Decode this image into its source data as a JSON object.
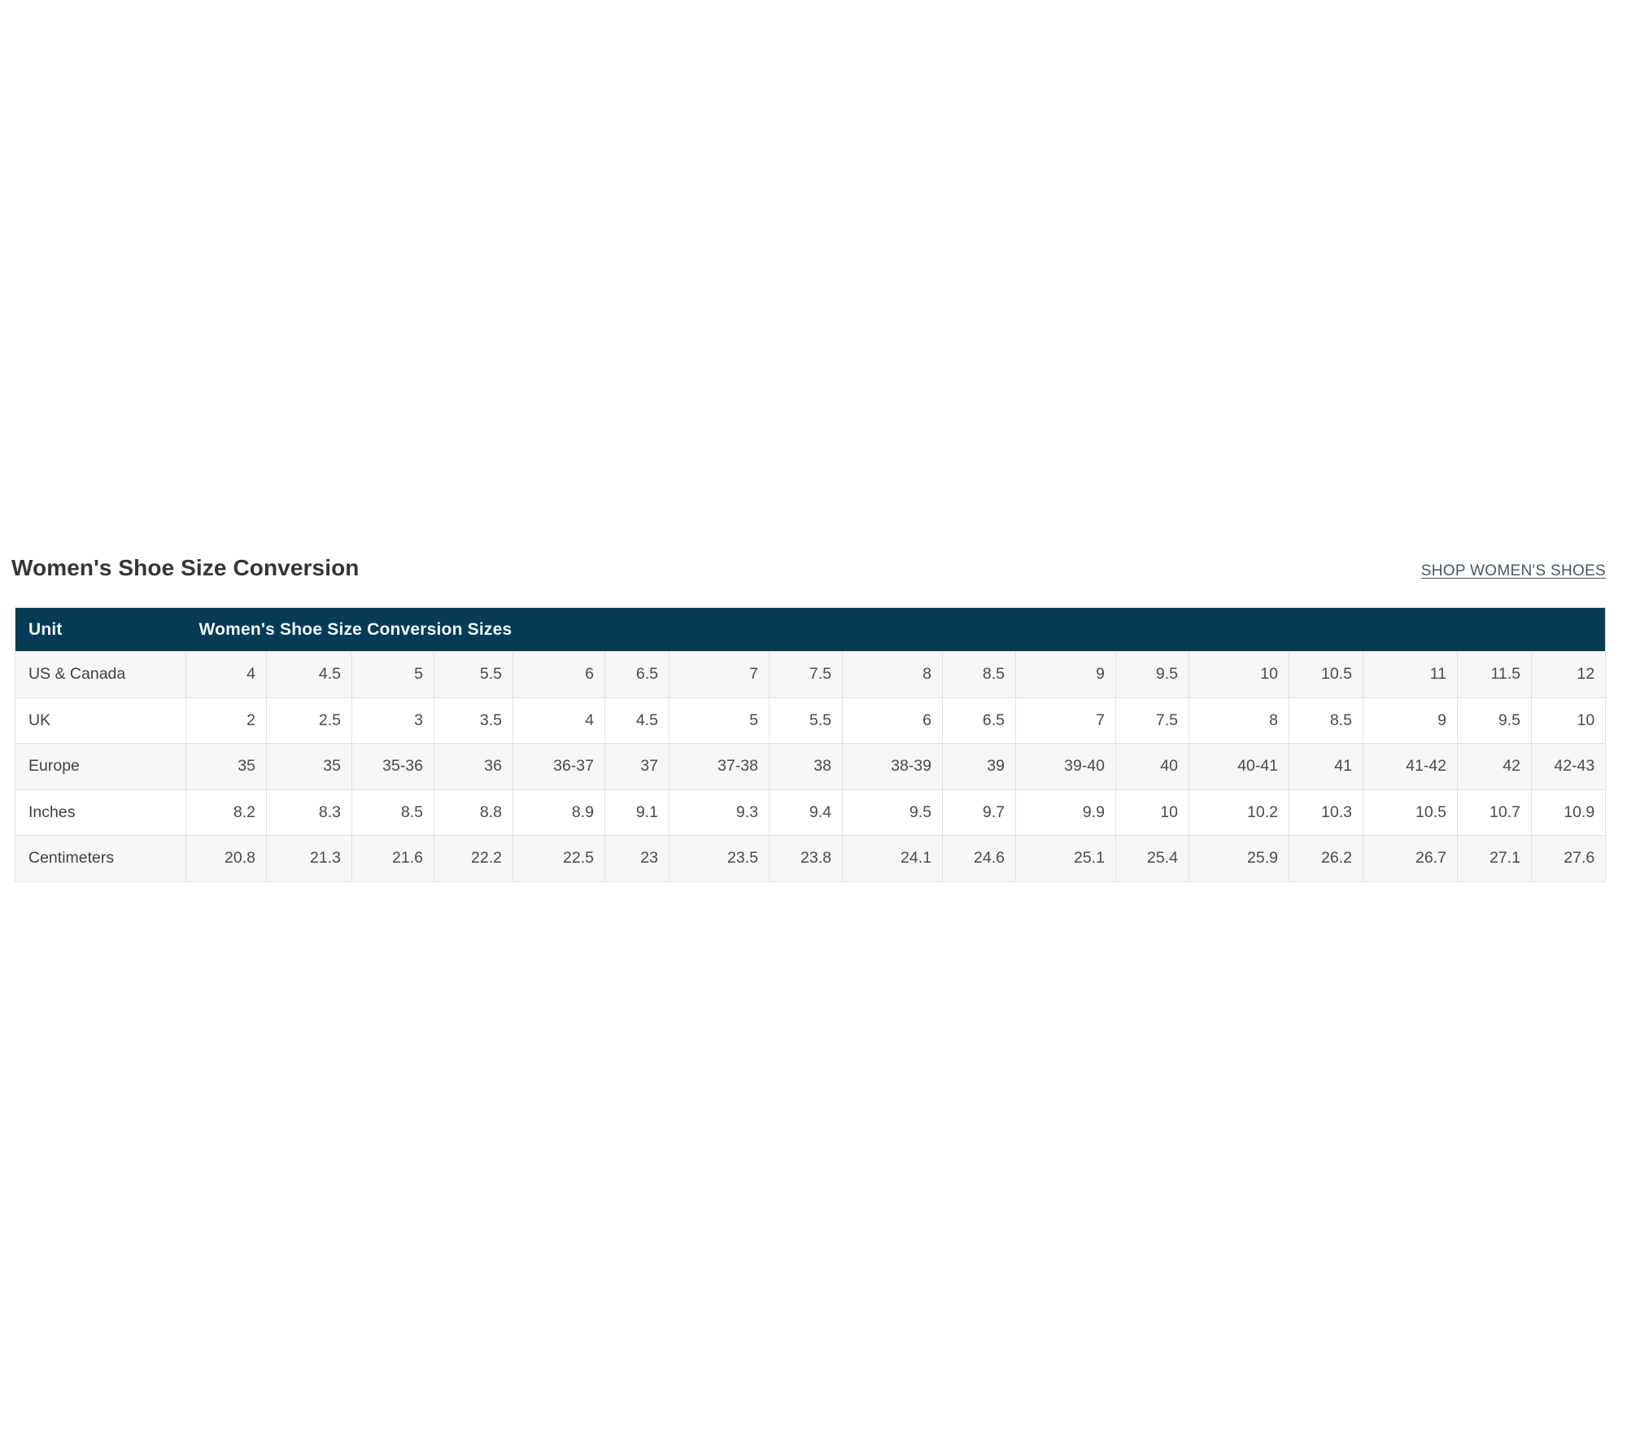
{
  "page": {
    "title": "Women's Shoe Size Conversion",
    "shop_link_label": "SHOP WOMEN'S SHOES"
  },
  "table": {
    "header": {
      "unit_label": "Unit",
      "sizes_label": "Women's Shoe Size Conversion Sizes"
    },
    "rows": [
      {
        "label": "US & Canada",
        "values": [
          "4",
          "4.5",
          "5",
          "5.5",
          "6",
          "6.5",
          "7",
          "7.5",
          "8",
          "8.5",
          "9",
          "9.5",
          "10",
          "10.5",
          "11",
          "11.5",
          "12"
        ]
      },
      {
        "label": "UK",
        "values": [
          "2",
          "2.5",
          "3",
          "3.5",
          "4",
          "4.5",
          "5",
          "5.5",
          "6",
          "6.5",
          "7",
          "7.5",
          "8",
          "8.5",
          "9",
          "9.5",
          "10"
        ]
      },
      {
        "label": "Europe",
        "values": [
          "35",
          "35",
          "35-36",
          "36",
          "36-37",
          "37",
          "37-38",
          "38",
          "38-39",
          "39",
          "39-40",
          "40",
          "40-41",
          "41",
          "41-42",
          "42",
          "42-43"
        ]
      },
      {
        "label": "Inches",
        "values": [
          "8.2",
          "8.3",
          "8.5",
          "8.8",
          "8.9",
          "9.1",
          "9.3",
          "9.4",
          "9.5",
          "9.7",
          "9.9",
          "10",
          "10.2",
          "10.3",
          "10.5",
          "10.7",
          "10.9"
        ]
      },
      {
        "label": "Centimeters",
        "values": [
          "20.8",
          "21.3",
          "21.6",
          "22.2",
          "22.5",
          "23",
          "23.5",
          "23.8",
          "24.1",
          "24.6",
          "25.1",
          "25.4",
          "25.9",
          "26.2",
          "26.7",
          "27.1",
          "27.6"
        ]
      }
    ]
  },
  "colors": {
    "header_bg": "#063b56",
    "header_text": "#f2f8fa",
    "stripe_bg": "#f7f7f7",
    "row_bg": "#ffffff",
    "border": "#e2e2e2",
    "cell_text": "#4a4a4a",
    "label_text": "#414141",
    "title_text": "#353535",
    "link_text": "#455a62"
  }
}
